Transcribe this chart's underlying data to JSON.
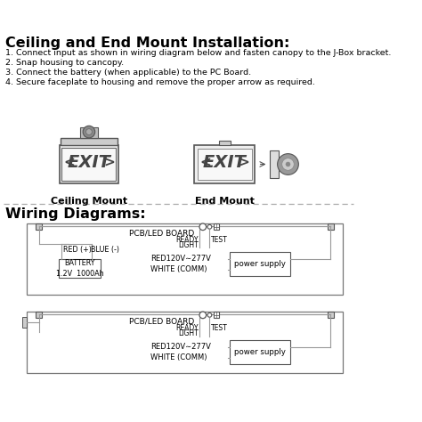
{
  "title": "Ceiling and End Mount Installation:",
  "instructions": [
    "1. Connect input as shown in wiring diagram below and fasten canopy to the J-Box bracket.",
    "2. Snap housing to cancopy.",
    "3. Connect the battery (when applicable) to the PC Board.",
    "4. Secure faceplate to housing and remove the proper arrow as required."
  ],
  "ceiling_mount_label": "Ceiling Mount",
  "end_mount_label": "End Mount",
  "wiring_title": "Wiring Diagrams:",
  "diagram1": {
    "pcb_label": "PCB/LED BOARD",
    "ready_label": "READY",
    "light_label": "LIGHT",
    "test_label": "TEST",
    "red_label": "RED (+)",
    "blue_label": "BLUE (-)",
    "battery_label": "BATTERY\n1.2V  1000Ah",
    "red_voltage": "RED120V∼277V",
    "white_comm": "WHITE (COMM)",
    "power_supply": "power supply",
    "has_battery": true
  },
  "diagram2": {
    "pcb_label": "PCB/LED BOARD",
    "ready_label": "READY",
    "light_label": "LIGHT",
    "test_label": "TEST",
    "red_voltage": "RED120V∼277V",
    "white_comm": "WHITE (COMM)",
    "power_supply": "power supply",
    "has_battery": false
  },
  "bg_color": "#ffffff",
  "line_color": "#999999",
  "text_color": "#000000",
  "dark_line": "#555555"
}
